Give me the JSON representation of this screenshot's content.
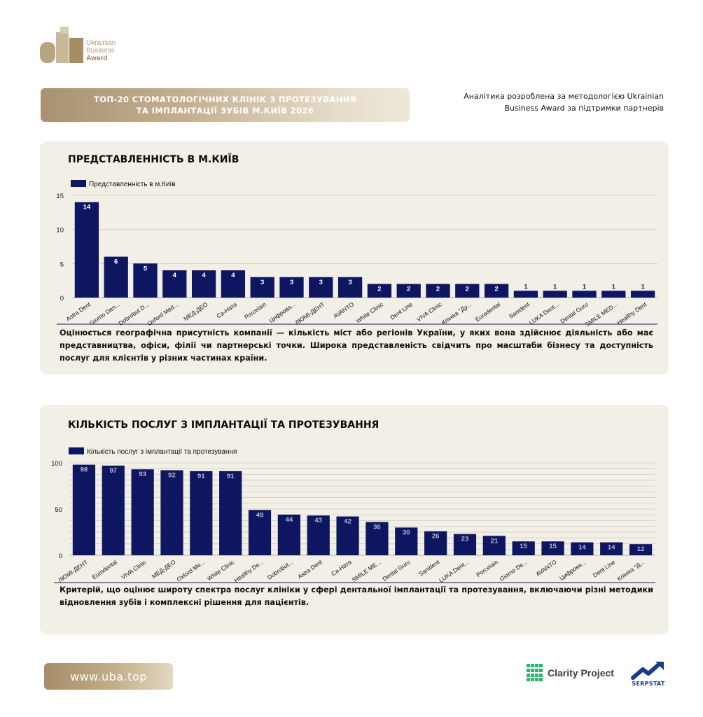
{
  "logo": {
    "line1": "Ukrainian",
    "line2": "Business",
    "line3": "Award"
  },
  "title_banner": {
    "line1": "ТОП-20 СТОМАТОЛОГІЧНИХ КЛІНІК З ПРОТЕЗУВАННЯ",
    "line2": "ТА ІМПЛАНТАЦІЇ ЗУБІВ М.КИЇВ 2026"
  },
  "method_note": {
    "line1": "Аналітика розроблена за методологією Ukrainian",
    "line2": "Business Award за підтримки партнерів"
  },
  "panel1": {
    "title": "ПРЕДСТАВЛЕННІСТЬ В М.КИЇВ",
    "description": "Оцінюється географічна присутність компанії — кількість міст або регіонів України, у яких вона здійснює діяльність або має представництва, офіси, філії чи партнерські точки. Широка представленість свідчить про масштаби бізнесу та доступність послуг для клієнтів у різних частинах країни."
  },
  "panel2": {
    "title": "КІЛЬКІСТЬ ПОСЛУГ З ІМПЛАНТАЦІЇ ТА ПРОТЕЗУВАННЯ",
    "description": "Критерій, що оцінює широту спектра послуг клініки у сфері дентальної імплантації та протезування, включаючи різні методики відновлення зубів і комплексні рішення для пацієнтів."
  },
  "colors": {
    "bar": "#0e1662",
    "gold": "#b09a73",
    "panel": "#f2efe6"
  },
  "footer": {
    "url": "www.uba.top",
    "clarity": "Clarity Project",
    "serpstat": "SERPSTAT"
  },
  "chart_data": [
    {
      "type": "bar",
      "legend": "Представленність в м.Київ",
      "categories": [
        "Astra Dent",
        "Giorno Den...",
        "Dobrobut D...",
        "Oxford Med...",
        "МЕД-ДЕО",
        "Са-Ната",
        "Porcelain",
        "Цифрова...",
        "ЛЮМІ-ДЕНТ",
        "AVANTO",
        "White Clinic",
        "Dent Line",
        "VIVA Clinic",
        "Клініка \"Ду...",
        "Eurodental",
        "Sanident",
        "LUKA Dent...",
        "Dental Guru",
        "SMILE MED...",
        "Healthy Dent"
      ],
      "series": [
        {
          "name": "Представленність в м.Київ",
          "values": [
            14,
            6,
            5,
            4,
            4,
            4,
            3,
            3,
            3,
            3,
            2,
            2,
            2,
            2,
            2,
            1,
            1,
            1,
            1,
            1
          ]
        }
      ],
      "yticks": [
        0,
        5,
        10,
        15
      ],
      "ylim": [
        0,
        15
      ],
      "grid": true,
      "legend_position": "top-left"
    },
    {
      "type": "bar",
      "legend": "Кількість послуг з імплантації та протезування",
      "categories": [
        "ЛЮМІ-ДЕНТ",
        "Eurodental",
        "VIVA Clinic",
        "МЕД-ДЕО",
        "Oxford Me...",
        "White Clinic",
        "Healthy De...",
        "Dobrobut...",
        "Astra Dent",
        "Са-Ната",
        "SMILE ME...",
        "Dental Guru",
        "Sanident",
        "LUKA Dent...",
        "Porcelain",
        "Giorno De...",
        "AVANTO",
        "Цифрова...",
        "Dent Line",
        "Клініка \"Д..."
      ],
      "series": [
        {
          "name": "Кількість послуг з імплантації та протезування",
          "values": [
            98,
            97,
            93,
            92,
            91,
            91,
            49,
            44,
            43,
            42,
            36,
            30,
            26,
            23,
            21,
            15,
            15,
            14,
            14,
            12
          ]
        }
      ],
      "yticks": [
        0,
        50,
        100
      ],
      "ylim": [
        0,
        100
      ],
      "grid": true,
      "legend_position": "top-left"
    }
  ]
}
